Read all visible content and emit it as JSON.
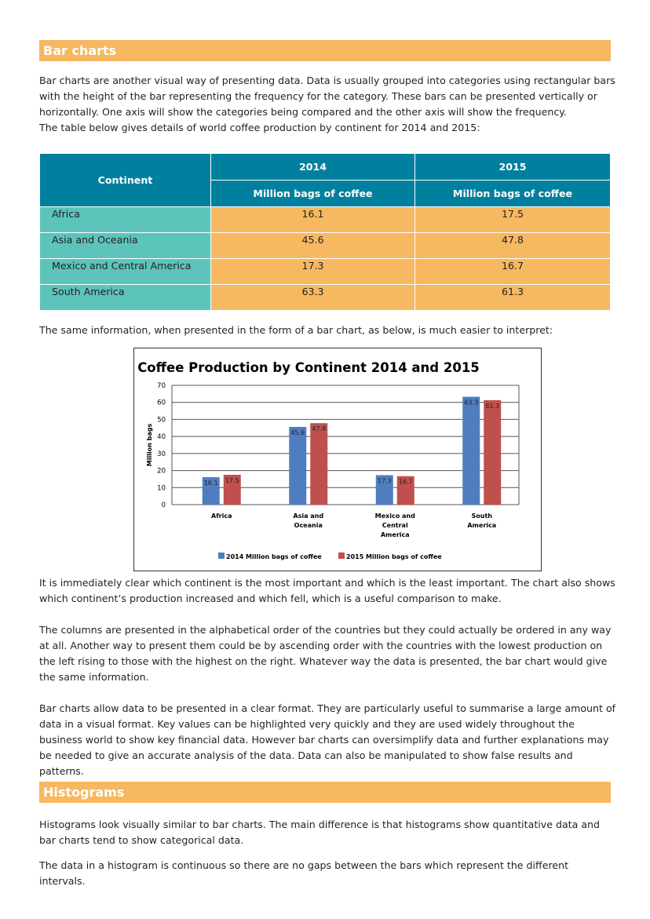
{
  "section1": {
    "title": "Bar charts",
    "intro": "Bar charts are another visual way of presenting data. Data is usually grouped into categories using rectangular bars with the height of the bar representing the frequency for the category. These bars can be presented vertically or horizontally. One axis will show the categories being compared and the other axis will show the frequency.",
    "intro2": "The table below gives details of world coffee production by continent for 2014 and 2015:"
  },
  "table": {
    "headers": {
      "continent": "Continent",
      "y2014": "2014",
      "y2015": "2015",
      "unit": "Million bags of coffee"
    },
    "rows": [
      {
        "continent": "Africa",
        "v2014": "16.1",
        "v2015": "17.5"
      },
      {
        "continent": "Asia and Oceania",
        "v2014": "45.6",
        "v2015": "47.8"
      },
      {
        "continent": "Mexico and Central America",
        "v2014": "17.3",
        "v2015": "16.7"
      },
      {
        "continent": "South America",
        "v2014": "63.3",
        "v2015": "61.3"
      }
    ]
  },
  "para_chart_intro": "The same information, when presented in the form of a bar chart, as below, is much easier to interpret:",
  "chart_data": {
    "type": "bar",
    "title": "Coffee Production by Continent 2014 and 2015",
    "xlabel": "",
    "ylabel": "Million bags",
    "ylim": [
      0,
      70
    ],
    "yticks": [
      0,
      10,
      20,
      30,
      40,
      50,
      60,
      70
    ],
    "grid": true,
    "legend": "bottom",
    "categories": [
      [
        "Africa"
      ],
      [
        "Asia and",
        "Oceania"
      ],
      [
        "Mexico and",
        "Central",
        "America"
      ],
      [
        "South",
        "America"
      ]
    ],
    "series": [
      {
        "name": "2014 Million bags of coffee",
        "color": "#4f7ec0",
        "values": [
          16.1,
          45.6,
          17.3,
          63.3
        ]
      },
      {
        "name": "2015 Million bags of coffee",
        "color": "#c0504d",
        "values": [
          17.5,
          47.8,
          16.7,
          61.3
        ]
      }
    ]
  },
  "paras": [
    "It is immediately clear which continent is the most important and which is the least important. The chart also shows which continent’s production increased and which fell, which is a useful comparison to make.",
    "The columns are presented in the alphabetical order of the countries but they could actually be ordered in any way at all. Another way to present them could be by ascending order with the countries with the lowest production on the left rising to those with the highest on the right. Whatever way the data is presented, the bar chart would give the same information.",
    "Bar charts allow data to be presented in a clear format. They are particularly useful to summarise a large amount of data in a visual format. Key values can be highlighted very quickly and they are used widely throughout the business world to show key financial data. However bar charts can oversimplify data and further explanations may be needed to give an accurate analysis of the data. Data can also be manipulated to show false results and patterns."
  ],
  "section2": {
    "title": "Histograms",
    "p1": "Histograms look visually similar to bar charts. The main difference is that histograms show quantitative data and bar charts tend to show categorical data.",
    "p2": "The data in a histogram is continuous so there are no gaps between the bars which represent the different intervals."
  }
}
